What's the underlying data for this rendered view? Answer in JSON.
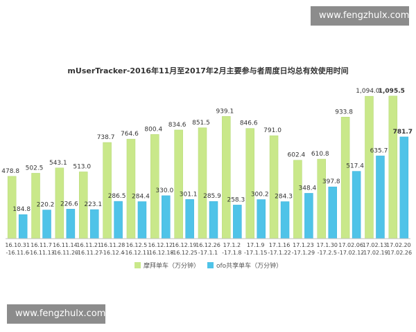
{
  "watermark": {
    "top": "www.fengzhulx.com",
    "bottom": "www.fengzhulx.com"
  },
  "colors": {
    "series_1": "#c9e88a",
    "series_2": "#4fc3e8",
    "highlight_1": "#8fcf2f",
    "highlight_2": "#1fa9d6"
  },
  "chart_data": {
    "type": "bar",
    "title": "mUserTracker-2016年11月至2017年2月主要参与者周度日均总有效使用时间",
    "categories": [
      [
        "16.10.31",
        "-16.11.6"
      ],
      [
        "16.11.7",
        "-16.11.13"
      ],
      [
        "16.11.14",
        "-16.11.20"
      ],
      [
        "16.11.21",
        "-16.11.27"
      ],
      [
        "16.11.28",
        "-16.12.4"
      ],
      [
        "16.12.5",
        "-16.12.11"
      ],
      [
        "16.12.12",
        "-16.12.18"
      ],
      [
        "16.12.19",
        "-16.12.25"
      ],
      [
        "16.12.26",
        "-17.1.1"
      ],
      [
        "17.1.2",
        "-17.1.8"
      ],
      [
        "17.1.9",
        "-17.1.15"
      ],
      [
        "17.1.16",
        "-17.1.22"
      ],
      [
        "17.1.23",
        "-17.1.29"
      ],
      [
        "17.1.30",
        "-17.2.5"
      ],
      [
        "17.02.06",
        "-17.02.12"
      ],
      [
        "17.02.13",
        "-17.02.19"
      ],
      [
        "17.02.20",
        "-17.02.26"
      ]
    ],
    "series": [
      {
        "name": "摩拜单车（万分钟）",
        "values": [
          478.8,
          502.5,
          543.1,
          513.0,
          738.7,
          764.6,
          800.4,
          834.6,
          851.5,
          939.1,
          846.6,
          791.0,
          602.4,
          610.8,
          933.8,
          1094.0,
          1095.5
        ],
        "labels": [
          "478.8",
          "502.5",
          "543.1",
          "513.0",
          "738.7",
          "764.6",
          "800.4",
          "834.6",
          "851.5",
          "939.1",
          "846.6",
          "791.0",
          "602.4",
          "610.8",
          "933.8",
          "1,094.0",
          "1,095.5"
        ]
      },
      {
        "name": "ofo共享单车（万分钟）",
        "values": [
          184.8,
          220.2,
          226.6,
          223.1,
          286.5,
          284.4,
          330.0,
          301.1,
          285.9,
          258.3,
          300.2,
          284.3,
          348.4,
          397.8,
          517.4,
          635.7,
          781.7
        ],
        "labels": [
          "184.8",
          "220.2",
          "226.6",
          "223.1",
          "286.5",
          "284.4",
          "330.0",
          "301.1",
          "285.9",
          "258.3",
          "300.2",
          "284.3",
          "348.4",
          "397.8",
          "517.4",
          "635.7",
          "781.7"
        ]
      }
    ],
    "highlight_last": true,
    "legend_position": "bottom",
    "grid": false
  }
}
